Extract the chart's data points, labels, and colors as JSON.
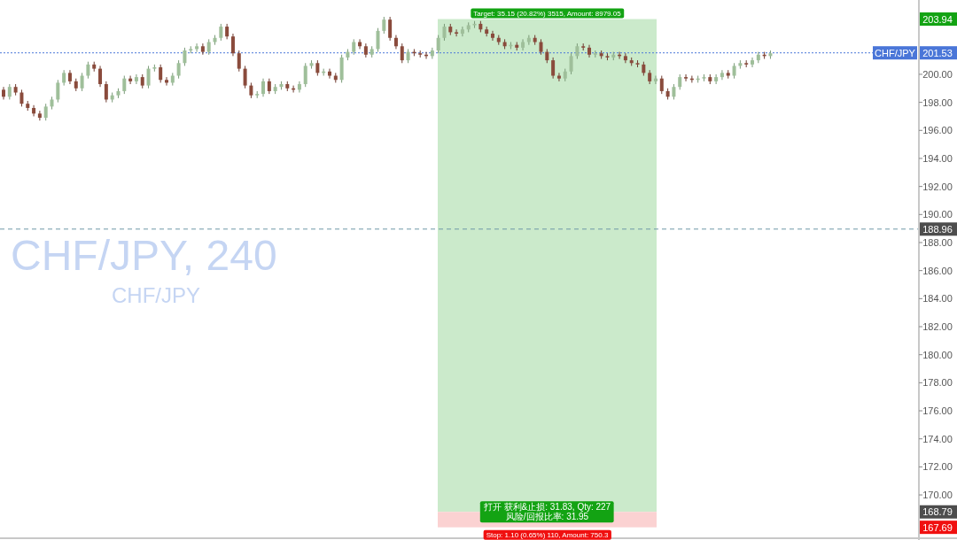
{
  "chart_data": {
    "type": "candlestick",
    "title": "CHF/JPY, 240",
    "subtitle": "CHF/JPY",
    "categories": [
      null,
      null,
      null,
      null,
      null,
      null,
      null,
      null,
      null,
      null,
      null,
      null,
      null,
      null,
      null,
      null,
      null,
      null,
      null,
      null,
      null,
      null,
      null,
      null,
      null,
      null,
      null,
      null,
      null,
      null,
      null,
      null,
      null,
      null,
      null,
      null,
      null,
      null,
      null,
      null,
      null,
      null,
      null,
      null,
      null,
      null,
      null,
      null,
      null,
      null,
      null,
      null,
      null,
      null,
      null,
      null,
      null,
      null,
      null,
      null,
      null,
      null,
      null,
      null,
      null,
      null,
      null,
      null,
      null,
      null,
      null,
      null,
      null,
      null,
      null,
      null,
      null,
      null,
      null,
      null,
      null,
      null,
      null,
      null,
      null,
      null,
      null,
      null,
      null,
      null,
      null,
      null,
      null,
      null,
      null,
      null,
      null,
      null,
      null,
      null,
      null,
      null,
      null,
      null,
      null,
      null,
      null,
      null,
      null,
      null,
      null,
      null,
      null,
      null,
      null,
      null,
      null,
      null,
      null,
      null,
      null,
      null,
      null,
      null,
      null,
      null,
      null,
      null,
      null,
      null,
      null,
      null,
      null,
      null,
      null,
      null,
      null,
      null,
      null,
      null,
      null,
      null,
      null,
      null,
      null,
      null,
      null,
      null,
      null,
      null,
      null,
      null
    ],
    "ohlc": [
      [
        198.9,
        199.1,
        198.2,
        198.4
      ],
      [
        198.4,
        199.3,
        198.2,
        199.1
      ],
      [
        199.1,
        199.3,
        198.5,
        198.7
      ],
      [
        198.7,
        198.9,
        197.7,
        197.9
      ],
      [
        197.9,
        198.1,
        197.4,
        197.6
      ],
      [
        197.6,
        197.8,
        197.0,
        197.2
      ],
      [
        197.2,
        197.4,
        196.7,
        196.9
      ],
      [
        196.9,
        197.9,
        196.7,
        197.7
      ],
      [
        197.7,
        198.4,
        197.5,
        198.2
      ],
      [
        198.2,
        199.6,
        198.0,
        199.4
      ],
      [
        199.4,
        200.3,
        199.2,
        200.1
      ],
      [
        200.1,
        200.3,
        199.3,
        199.5
      ],
      [
        199.5,
        199.7,
        198.8,
        199.0
      ],
      [
        199.0,
        200.1,
        198.8,
        199.9
      ],
      [
        199.9,
        200.9,
        199.7,
        200.7
      ],
      [
        200.7,
        200.9,
        200.2,
        200.4
      ],
      [
        200.4,
        200.6,
        199.1,
        199.3
      ],
      [
        199.3,
        199.5,
        198.0,
        198.2
      ],
      [
        198.2,
        198.7,
        198.0,
        198.5
      ],
      [
        198.5,
        199.0,
        198.3,
        198.8
      ],
      [
        198.8,
        199.9,
        198.6,
        199.7
      ],
      [
        199.7,
        199.9,
        199.3,
        199.5
      ],
      [
        199.5,
        200.0,
        199.3,
        199.8
      ],
      [
        199.8,
        200.0,
        199.0,
        199.2
      ],
      [
        199.2,
        200.6,
        199.0,
        200.4
      ],
      [
        200.4,
        200.7,
        200.2,
        200.5
      ],
      [
        200.5,
        200.7,
        199.4,
        199.6
      ],
      [
        199.6,
        199.8,
        199.2,
        199.4
      ],
      [
        199.4,
        200.1,
        199.2,
        199.9
      ],
      [
        199.9,
        201.0,
        199.7,
        200.8
      ],
      [
        200.8,
        201.9,
        200.6,
        201.7
      ],
      [
        201.7,
        202.0,
        201.5,
        201.8
      ],
      [
        201.8,
        202.2,
        201.6,
        202.0
      ],
      [
        202.0,
        202.2,
        201.4,
        201.6
      ],
      [
        201.6,
        202.5,
        201.4,
        202.3
      ],
      [
        202.3,
        202.8,
        202.1,
        202.6
      ],
      [
        202.6,
        203.6,
        202.4,
        203.4
      ],
      [
        203.4,
        203.6,
        202.5,
        202.7
      ],
      [
        202.7,
        202.9,
        201.3,
        201.5
      ],
      [
        201.5,
        201.7,
        200.2,
        200.4
      ],
      [
        200.4,
        200.6,
        199.0,
        199.2
      ],
      [
        199.2,
        199.4,
        198.3,
        198.5
      ],
      [
        198.5,
        198.8,
        198.3,
        198.6
      ],
      [
        198.6,
        199.7,
        198.4,
        199.5
      ],
      [
        199.5,
        199.7,
        198.6,
        198.8
      ],
      [
        198.8,
        199.3,
        198.6,
        199.1
      ],
      [
        199.1,
        199.5,
        198.9,
        199.3
      ],
      [
        199.3,
        199.5,
        198.8,
        199.0
      ],
      [
        199.0,
        199.2,
        198.7,
        198.9
      ],
      [
        198.9,
        199.5,
        198.7,
        199.3
      ],
      [
        199.3,
        200.8,
        199.1,
        200.6
      ],
      [
        200.6,
        201.0,
        200.4,
        200.8
      ],
      [
        200.8,
        201.0,
        199.9,
        200.1
      ],
      [
        200.1,
        200.4,
        199.9,
        200.2
      ],
      [
        200.2,
        200.4,
        199.7,
        199.9
      ],
      [
        199.9,
        200.1,
        199.4,
        199.6
      ],
      [
        199.6,
        201.4,
        199.4,
        201.2
      ],
      [
        201.2,
        201.8,
        201.0,
        201.6
      ],
      [
        201.6,
        202.5,
        201.4,
        202.3
      ],
      [
        202.3,
        202.5,
        201.8,
        202.0
      ],
      [
        202.0,
        202.2,
        201.2,
        201.4
      ],
      [
        201.4,
        202.0,
        201.2,
        201.8
      ],
      [
        201.8,
        203.3,
        201.6,
        203.1
      ],
      [
        203.1,
        204.1,
        202.9,
        203.9
      ],
      [
        203.9,
        204.1,
        202.4,
        202.6
      ],
      [
        202.6,
        202.8,
        201.8,
        202.0
      ],
      [
        202.0,
        202.2,
        200.8,
        201.0
      ],
      [
        201.0,
        201.8,
        200.8,
        201.6
      ],
      [
        201.6,
        201.8,
        201.3,
        201.5
      ],
      [
        201.5,
        201.7,
        201.2,
        201.4
      ],
      [
        201.4,
        201.6,
        201.1,
        201.3
      ],
      [
        201.3,
        201.9,
        201.1,
        201.7
      ],
      [
        201.7,
        202.8,
        201.5,
        202.6
      ],
      [
        202.6,
        203.6,
        202.4,
        203.4
      ],
      [
        203.4,
        203.6,
        202.8,
        203.0
      ],
      [
        203.0,
        203.2,
        202.7,
        202.9
      ],
      [
        202.9,
        203.4,
        202.7,
        203.2
      ],
      [
        203.2,
        203.7,
        203.0,
        203.5
      ],
      [
        203.5,
        203.8,
        203.3,
        203.6
      ],
      [
        203.6,
        203.8,
        203.0,
        203.2
      ],
      [
        203.2,
        203.4,
        202.7,
        202.9
      ],
      [
        202.9,
        203.1,
        202.4,
        202.6
      ],
      [
        202.6,
        202.8,
        202.1,
        202.3
      ],
      [
        202.3,
        202.5,
        201.8,
        202.0
      ],
      [
        202.0,
        202.3,
        201.8,
        202.1
      ],
      [
        202.1,
        202.3,
        201.7,
        201.9
      ],
      [
        201.9,
        202.5,
        201.7,
        202.3
      ],
      [
        202.3,
        202.8,
        202.1,
        202.6
      ],
      [
        202.6,
        202.8,
        202.1,
        202.3
      ],
      [
        202.3,
        202.5,
        201.4,
        201.6
      ],
      [
        201.6,
        201.8,
        200.8,
        201.0
      ],
      [
        201.0,
        201.2,
        199.7,
        199.9
      ],
      [
        199.9,
        200.1,
        199.5,
        199.7
      ],
      [
        199.7,
        200.4,
        199.5,
        200.2
      ],
      [
        200.2,
        201.5,
        200.0,
        201.3
      ],
      [
        201.3,
        202.2,
        201.1,
        202.0
      ],
      [
        202.0,
        202.2,
        201.7,
        201.9
      ],
      [
        201.9,
        202.1,
        201.2,
        201.4
      ],
      [
        201.4,
        201.7,
        201.2,
        201.5
      ],
      [
        201.5,
        201.7,
        201.1,
        201.3
      ],
      [
        201.3,
        201.5,
        201.0,
        201.2
      ],
      [
        201.2,
        201.6,
        201.0,
        201.4
      ],
      [
        201.4,
        201.6,
        201.1,
        201.3
      ],
      [
        201.3,
        201.5,
        200.8,
        201.0
      ],
      [
        201.0,
        201.2,
        200.6,
        200.8
      ],
      [
        200.8,
        201.0,
        200.5,
        200.7
      ],
      [
        200.7,
        200.9,
        199.9,
        200.1
      ],
      [
        200.1,
        200.3,
        199.3,
        199.5
      ],
      [
        199.5,
        199.9,
        199.3,
        199.7
      ],
      [
        199.7,
        199.9,
        198.6,
        198.8
      ],
      [
        198.8,
        199.0,
        198.2,
        198.4
      ],
      [
        198.4,
        199.3,
        198.2,
        199.1
      ],
      [
        199.1,
        200.0,
        198.9,
        199.8
      ],
      [
        199.8,
        200.0,
        199.5,
        199.7
      ],
      [
        199.7,
        199.9,
        199.4,
        199.6
      ],
      [
        199.6,
        199.9,
        199.4,
        199.7
      ],
      [
        199.7,
        200.0,
        199.5,
        199.8
      ],
      [
        199.8,
        200.0,
        199.3,
        199.5
      ],
      [
        199.5,
        200.0,
        199.3,
        199.8
      ],
      [
        199.8,
        200.3,
        199.6,
        200.1
      ],
      [
        200.1,
        200.3,
        199.7,
        199.9
      ],
      [
        199.9,
        200.8,
        199.7,
        200.6
      ],
      [
        200.6,
        201.0,
        200.4,
        200.8
      ],
      [
        200.8,
        201.0,
        200.5,
        200.7
      ],
      [
        200.7,
        201.2,
        200.5,
        201.0
      ],
      [
        201.0,
        201.6,
        200.8,
        201.4
      ],
      [
        201.4,
        201.6,
        201.1,
        201.3
      ],
      [
        201.3,
        201.7,
        201.1,
        201.5
      ],
      null,
      null,
      null,
      null,
      null,
      null,
      null,
      null,
      null,
      null,
      null,
      null,
      null,
      null,
      null,
      null,
      null,
      null,
      null,
      null,
      null,
      null,
      null,
      null
    ],
    "ylim": [
      167.1,
      205.3
    ],
    "yticks": [
      {
        "value": 170,
        "label": "170.00"
      },
      {
        "value": 172,
        "label": "172.00"
      },
      {
        "value": 174,
        "label": "174.00"
      },
      {
        "value": 176,
        "label": "176.00"
      },
      {
        "value": 178,
        "label": "178.00"
      },
      {
        "value": 180,
        "label": "180.00"
      },
      {
        "value": 182,
        "label": "182.00"
      },
      {
        "value": 184,
        "label": "184.00"
      },
      {
        "value": 186,
        "label": "186.00"
      },
      {
        "value": 188,
        "label": "188.00"
      },
      {
        "value": 190,
        "label": "190.00"
      },
      {
        "value": 192,
        "label": "192.00"
      },
      {
        "value": 194,
        "label": "194.00"
      },
      {
        "value": 196,
        "label": "196.00"
      },
      {
        "value": 198,
        "label": "198.00"
      },
      {
        "value": 200,
        "label": "200.00"
      },
      {
        "value": 203.94,
        "label": "203.94"
      },
      {
        "value": 201.53,
        "label": "201.53"
      },
      {
        "value": 188.96,
        "label": "188.96"
      },
      {
        "value": 168.79,
        "label": "168.79"
      },
      {
        "value": 167.69,
        "label": "167.69"
      }
    ],
    "tick_labels": "y",
    "grid": false,
    "ref_lines": [
      {
        "axis": "y",
        "value": 201.53,
        "label": "CHF/JPY",
        "color": "#4a76d8",
        "line_style": "dotted"
      },
      {
        "axis": "y",
        "value": 188.96,
        "color": "#6f98a8",
        "line_style": "dashed"
      }
    ],
    "bands": [
      {
        "axis": "y",
        "from": 168.79,
        "to": 203.94,
        "label": "Target: 35.15 (20.82%) 3515, Amount: 8979.05",
        "color": "#cbeacb"
      },
      {
        "axis": "y",
        "from": 167.69,
        "to": 168.79,
        "label": "Stop: 1.10 (0.65%) 110, Amount: 750.3",
        "color": "#fbd2d2"
      }
    ],
    "annotations": [
      "打开 获利&止损: 31.83, Qty: 227",
      "风险/回报比率: 31.95"
    ]
  }
}
